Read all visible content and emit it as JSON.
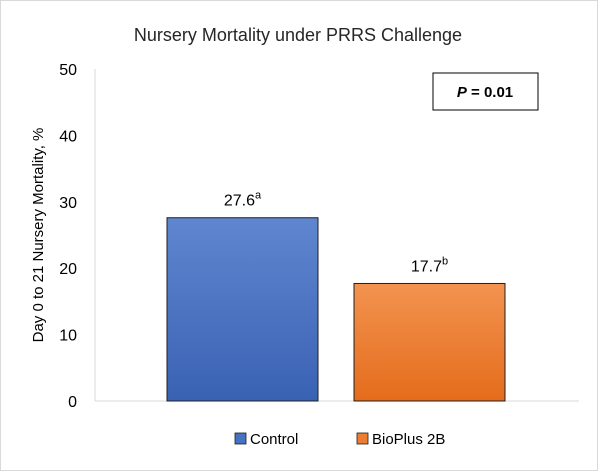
{
  "chart_data": {
    "type": "bar",
    "title": "Nursery Mortality under PRRS Challenge",
    "ylabel": "Day 0 to 21 Nursery Mortality, %",
    "xlabel": "",
    "ylim": [
      0,
      50
    ],
    "yticks": [
      0,
      10,
      20,
      30,
      40,
      50
    ],
    "grid": false,
    "legend_position": "bottom",
    "series": [
      {
        "name": "Control",
        "value": 27.6,
        "label": "27.6",
        "superscript": "a",
        "color": "#4472c4"
      },
      {
        "name": "BioPlus 2B",
        "value": 17.7,
        "label": "17.7",
        "superscript": "b",
        "color": "#ed7d31"
      }
    ],
    "annotation": {
      "italic": "P",
      "text": " = 0.01"
    }
  }
}
